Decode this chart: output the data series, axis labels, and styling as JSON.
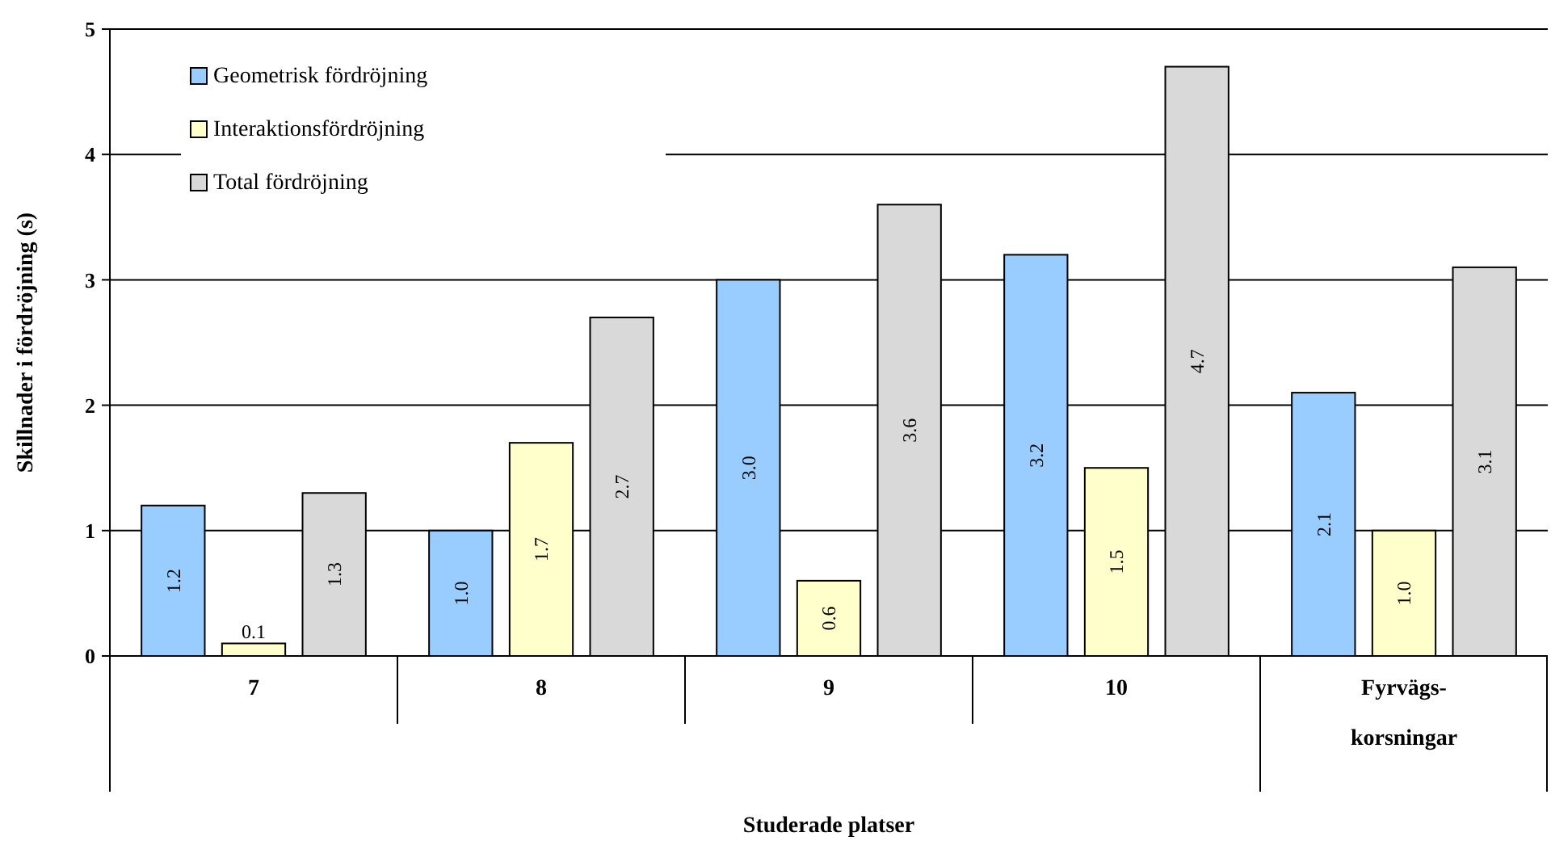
{
  "chart_data": {
    "type": "bar",
    "xlabel": "Studerade platser",
    "ylabel": "Skillnader i fördröjning (s)",
    "categories": [
      "7",
      "8",
      "9",
      "10",
      "Fyrvägs-korsningar"
    ],
    "series": [
      {
        "name": "Geometrisk fördröjning",
        "color": "#99ccff",
        "values": [
          1.2,
          1.0,
          3.0,
          3.2,
          2.1
        ],
        "value_labels": [
          "1.2",
          "1.0",
          "3.0",
          "3.2",
          "2.1"
        ]
      },
      {
        "name": "Interaktionsfördröjning",
        "color": "#ffffcc",
        "values": [
          0.1,
          1.7,
          0.6,
          1.5,
          1.0
        ],
        "value_labels": [
          "0.1",
          "1.7",
          "0.6",
          "1.5",
          "1.0"
        ]
      },
      {
        "name": "Total fördröjning",
        "color": "#d9d9d9",
        "values": [
          1.3,
          2.7,
          3.6,
          4.7,
          3.1
        ],
        "value_labels": [
          "1.3",
          "2.7",
          "3.6",
          "4.7",
          "3.1"
        ]
      }
    ],
    "ylim": [
      0,
      5
    ],
    "yticks": [
      0,
      1,
      2,
      3,
      4,
      5
    ],
    "grid": "y",
    "legend": "top left"
  }
}
